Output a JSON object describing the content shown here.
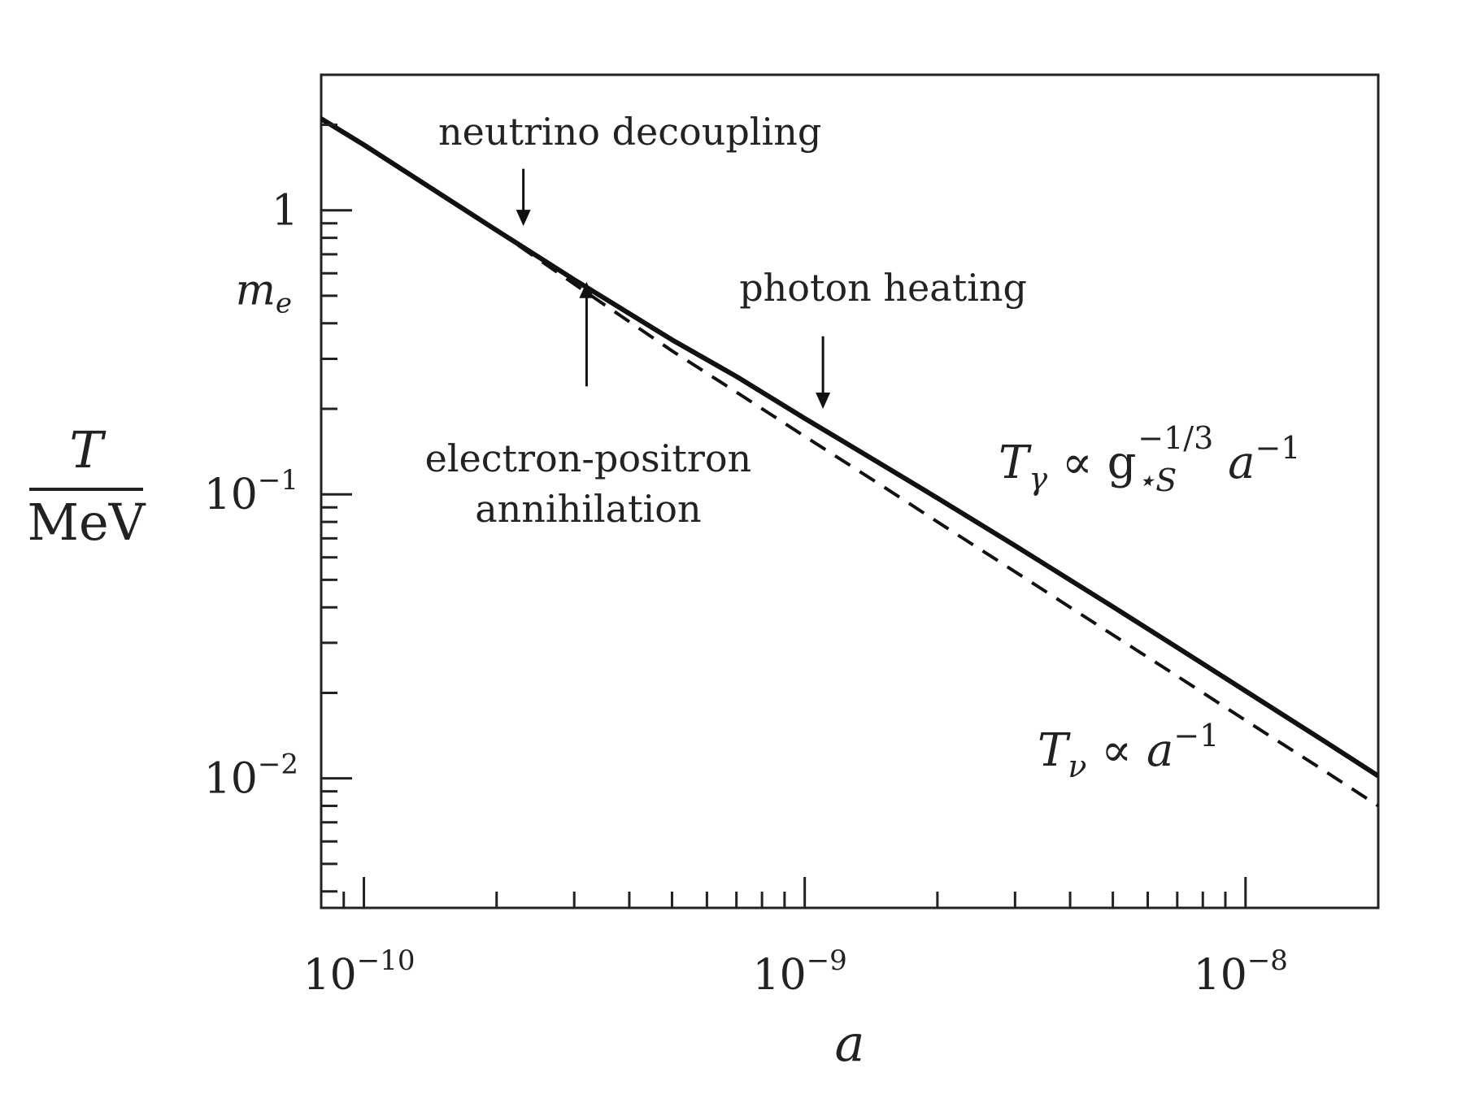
{
  "chart_data": {
    "type": "line",
    "xscale": "log",
    "yscale": "log",
    "xlim": [
      8e-11,
      2e-08
    ],
    "ylim": [
      0.0035,
      3.0
    ],
    "grid": false,
    "legend": "none",
    "xlabel": "a",
    "ylabel_numerator": "T",
    "ylabel_denominator": "MeV",
    "x_ticks": [
      {
        "value": 1e-10,
        "base": "10",
        "exp": "−10"
      },
      {
        "value": 1e-09,
        "base": "10",
        "exp": "−9"
      },
      {
        "value": 1e-08,
        "base": "10",
        "exp": "−8"
      }
    ],
    "y_ticks": [
      {
        "value": 1,
        "base": "1",
        "exp": ""
      },
      {
        "value": 0.1,
        "base": "10",
        "exp": "−1"
      },
      {
        "value": 0.01,
        "base": "10",
        "exp": "−2"
      }
    ],
    "y_special_tick": {
      "value": 0.511,
      "base": "m",
      "sub": "e"
    },
    "series": [
      {
        "style": "solid",
        "label": {
          "main": "T",
          "sub": "γ",
          "mid": " ∝ g",
          "sub2": "⋆S",
          "sup": "−1/3",
          "tail": " a",
          "sup2": "−1"
        },
        "x": [
          8e-11,
          1e-10,
          2e-10,
          3e-10,
          5e-10,
          7e-10,
          1e-09,
          1.5e-09,
          2e-09,
          3e-09,
          5e-09,
          7e-09,
          1e-08,
          1.5e-08,
          2e-08
        ],
        "y": [
          2.1,
          1.7,
          0.85,
          0.57,
          0.35,
          0.26,
          0.185,
          0.127,
          0.097,
          0.066,
          0.0402,
          0.0289,
          0.0203,
          0.0136,
          0.0102
        ]
      },
      {
        "style": "dashed",
        "label": {
          "main": "T",
          "sub": "ν",
          "mid": " ∝ a",
          "sup": "−1"
        },
        "x": [
          8e-11,
          1e-10,
          2e-10,
          3e-10,
          5e-10,
          7e-10,
          1e-09,
          1.5e-09,
          2e-09,
          3e-09,
          5e-09,
          7e-09,
          1e-08,
          1.5e-08,
          2e-08
        ],
        "y": [
          2.1,
          1.7,
          0.85,
          0.55,
          0.32,
          0.229,
          0.16,
          0.107,
          0.08,
          0.0534,
          0.032,
          0.0229,
          0.016,
          0.0107,
          0.008
        ]
      }
    ],
    "annotations": [
      {
        "text": "neutrino decoupling",
        "arrow_x": 2.3e-10,
        "arrow_y_from": 1.4,
        "arrow_y_to": 0.88
      },
      {
        "text": "photon heating",
        "arrow_x": 1.1e-09,
        "arrow_y_from": 0.36,
        "arrow_y_to": 0.2
      },
      {
        "text_lines": [
          "electron-positron",
          "annihilation"
        ],
        "arrow_x": 3.2e-10,
        "arrow_y_from": 0.24,
        "arrow_y_to": 0.56
      }
    ],
    "colors": {
      "line": "#111111",
      "axis": "#222222"
    }
  }
}
